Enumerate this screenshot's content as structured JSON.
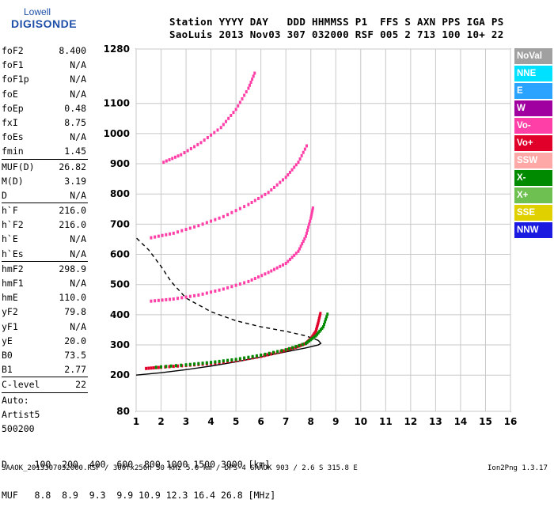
{
  "logo": {
    "line1": "Lowell",
    "line2": "DIGISONDE"
  },
  "header": {
    "line1": "Station YYYY DAY   DDD HHMMSS P1  FFS S AXN PPS IGA PS",
    "line2": "SaoLuis 2013 Nov03 307 032000 RSF 005 2 713 100 10+ 22"
  },
  "params": [
    {
      "name": "foF2",
      "value": "8.400"
    },
    {
      "name": "foF1",
      "value": "N/A"
    },
    {
      "name": "foF1p",
      "value": "N/A"
    },
    {
      "name": "foE",
      "value": "N/A"
    },
    {
      "name": "foEp",
      "value": "0.48"
    },
    {
      "name": "fxI",
      "value": "8.75"
    },
    {
      "name": "foEs",
      "value": "N/A"
    },
    {
      "name": "fmin",
      "value": "1.45",
      "sep": true
    },
    {
      "name": "MUF(D)",
      "value": "26.82"
    },
    {
      "name": "M(D)",
      "value": "3.19"
    },
    {
      "name": "D",
      "value": "N/A",
      "sep": true
    },
    {
      "name": "h`F",
      "value": "216.0"
    },
    {
      "name": "h`F2",
      "value": "216.0"
    },
    {
      "name": "h`E",
      "value": "N/A"
    },
    {
      "name": "h`Es",
      "value": "N/A",
      "sep": true
    },
    {
      "name": "hmF2",
      "value": "298.9"
    },
    {
      "name": "hmF1",
      "value": "N/A"
    },
    {
      "name": "hmE",
      "value": "110.0"
    },
    {
      "name": "yF2",
      "value": "79.8"
    },
    {
      "name": "yF1",
      "value": "N/A"
    },
    {
      "name": "yE",
      "value": "20.0"
    },
    {
      "name": "B0",
      "value": "73.5"
    },
    {
      "name": "B1",
      "value": "2.77",
      "sep": true
    },
    {
      "name": "C-level",
      "value": "22",
      "sep": true
    },
    {
      "name": "Auto:",
      "value": ""
    },
    {
      "name": "Artist5",
      "value": ""
    },
    {
      "name": "500200",
      "value": ""
    }
  ],
  "legend": [
    {
      "label": "NoVal",
      "color": "#a0a0a0"
    },
    {
      "label": "NNE",
      "color": "#00e0ff"
    },
    {
      "label": "E",
      "color": "#2aa2ff"
    },
    {
      "label": "W",
      "color": "#a000a0"
    },
    {
      "label": "Vo-",
      "color": "#ff3fa8"
    },
    {
      "label": "Vo+",
      "color": "#e0002a"
    },
    {
      "label": "SSW",
      "color": "#ffa8a8"
    },
    {
      "label": "X-",
      "color": "#008a00"
    },
    {
      "label": "X+",
      "color": "#6ec050"
    },
    {
      "label": "SSE",
      "color": "#e0d000"
    },
    {
      "label": "NNW",
      "color": "#1a1ae0"
    }
  ],
  "bottom": {
    "line1": "D     100  200  400  600  800 1000 1500 3000 [km]",
    "line2": "MUF   8.8  8.9  9.3  9.9 10.9 12.3 16.4 26.8 [MHz]"
  },
  "footer": {
    "left": "SAAOK_2013307032000.RSF / 300fx256h 50 kHz 5.0 km / DPS-4 SAAOK 903 / 2.6 S 315.8 E",
    "right": "Ion2Png 1.3.17"
  },
  "chart_data": {
    "type": "scatter",
    "title": "",
    "xlabel": "",
    "ylabel": "",
    "xlim": [
      1,
      16
    ],
    "ylim": [
      80,
      1280
    ],
    "xticks": [
      1,
      2,
      3,
      4,
      5,
      6,
      7,
      8,
      9,
      10,
      11,
      12,
      13,
      14,
      15,
      16
    ],
    "yticks": [
      80,
      200,
      300,
      400,
      500,
      600,
      700,
      800,
      900,
      1000,
      1100,
      1280
    ],
    "profile_curve": {
      "color": "#000000",
      "points": [
        [
          1.0,
          200
        ],
        [
          2,
          208
        ],
        [
          3,
          218
        ],
        [
          4,
          230
        ],
        [
          5,
          244
        ],
        [
          6,
          260
        ],
        [
          7,
          277
        ],
        [
          7.8,
          290
        ],
        [
          8.3,
          300
        ],
        [
          8.4,
          305
        ],
        [
          8.3,
          315
        ],
        [
          7.8,
          330
        ],
        [
          7,
          345
        ],
        [
          6,
          360
        ],
        [
          5,
          380
        ],
        [
          4,
          410
        ],
        [
          3,
          455
        ],
        [
          2.4,
          510
        ],
        [
          2,
          560
        ],
        [
          1.5,
          615
        ],
        [
          1.0,
          655
        ]
      ]
    },
    "traces": [
      {
        "name": "1st hop",
        "color": "#e0002a",
        "points": [
          [
            1.4,
            222
          ],
          [
            2,
            226
          ],
          [
            3,
            232
          ],
          [
            4,
            238
          ],
          [
            5,
            248
          ],
          [
            6,
            262
          ],
          [
            6.8,
            278
          ],
          [
            7.4,
            292
          ],
          [
            7.8,
            305
          ],
          [
            8.0,
            320
          ],
          [
            8.2,
            345
          ],
          [
            8.3,
            375
          ],
          [
            8.4,
            410
          ]
        ]
      },
      {
        "name": "1st hop X",
        "color": "#008a00",
        "points": [
          [
            1.8,
            226
          ],
          [
            3,
            234
          ],
          [
            4,
            242
          ],
          [
            5,
            252
          ],
          [
            6,
            266
          ],
          [
            7,
            284
          ],
          [
            7.8,
            305
          ],
          [
            8.2,
            330
          ],
          [
            8.5,
            360
          ],
          [
            8.7,
            410
          ]
        ]
      },
      {
        "name": "2nd hop",
        "color": "#ff3fa8",
        "points": [
          [
            1.6,
            445
          ],
          [
            2.5,
            452
          ],
          [
            3.5,
            465
          ],
          [
            4.5,
            485
          ],
          [
            5.5,
            510
          ],
          [
            6.3,
            540
          ],
          [
            7,
            570
          ],
          [
            7.5,
            610
          ],
          [
            7.8,
            660
          ],
          [
            8.0,
            720
          ],
          [
            8.1,
            760
          ]
        ]
      },
      {
        "name": "3rd hop",
        "color": "#ff3fa8",
        "points": [
          [
            1.6,
            655
          ],
          [
            2.5,
            670
          ],
          [
            3.5,
            695
          ],
          [
            4.5,
            725
          ],
          [
            5.5,
            765
          ],
          [
            6.3,
            805
          ],
          [
            7,
            855
          ],
          [
            7.5,
            905
          ],
          [
            7.9,
            970
          ]
        ]
      },
      {
        "name": "4th hop",
        "color": "#ff3fa8",
        "points": [
          [
            2.1,
            905
          ],
          [
            2.8,
            930
          ],
          [
            3.6,
            970
          ],
          [
            4.4,
            1020
          ],
          [
            5,
            1080
          ],
          [
            5.5,
            1150
          ],
          [
            5.8,
            1210
          ]
        ]
      }
    ]
  }
}
